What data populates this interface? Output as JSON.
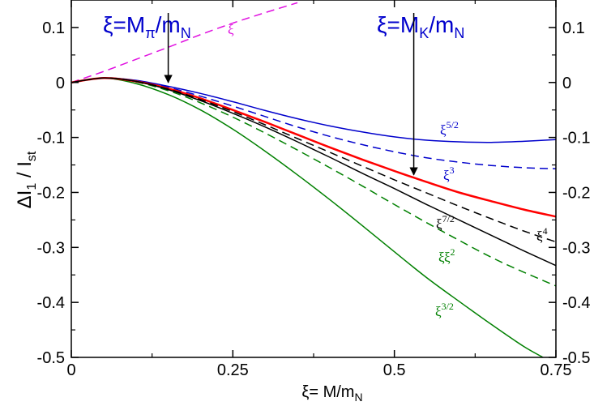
{
  "chart_data": {
    "type": "line",
    "title": "",
    "xlabel": "ξ= M/m_N",
    "ylabel": "ΔI_1 / I_st",
    "xlim": [
      0,
      0.75
    ],
    "ylim": [
      -0.5,
      0.15
    ],
    "x_ticks": [
      0,
      0.25,
      0.5,
      0.75
    ],
    "x_tick_labels": [
      "0",
      "0.25",
      "0.5",
      "0.75"
    ],
    "y_ticks": [
      0.1,
      0,
      -0.1,
      -0.2,
      -0.3,
      -0.4,
      -0.5
    ],
    "y_tick_labels": [
      "0.1",
      "0",
      "-0.1",
      "-0.2",
      "-0.3",
      "-0.4",
      "-0.5"
    ],
    "grid": false,
    "colors": {
      "blue": "#0000cc",
      "green": "#008000",
      "red": "#ff0000",
      "black": "#000000",
      "magenta": "#e010e0"
    },
    "series": [
      {
        "name": "xi",
        "label_base": "ξ",
        "label_sup": "",
        "label_prefix": "",
        "color": "#e010e0",
        "dash": "dashed",
        "width": 1.5,
        "x": [
          0,
          0.05,
          0.1,
          0.15,
          0.2,
          0.25,
          0.3,
          0.35
        ],
        "y": [
          0,
          0.02,
          0.042,
          0.064,
          0.087,
          0.108,
          0.127,
          0.145
        ]
      },
      {
        "name": "xi^3/2",
        "label_base": "ξ",
        "label_sup": "3/2",
        "label_prefix": "",
        "color": "#008000",
        "dash": "solid",
        "width": 1.5,
        "x": [
          0,
          0.05,
          0.1,
          0.15,
          0.2,
          0.25,
          0.3,
          0.35,
          0.4,
          0.45,
          0.5,
          0.55,
          0.6,
          0.65,
          0.7,
          0.73
        ],
        "y": [
          0,
          0.008,
          -0.002,
          -0.022,
          -0.05,
          -0.085,
          -0.125,
          -0.168,
          -0.213,
          -0.26,
          -0.308,
          -0.355,
          -0.398,
          -0.44,
          -0.48,
          -0.5
        ]
      },
      {
        "name": "xi^2",
        "label_base": "ξ",
        "label_sup": "2",
        "label_prefix": "ξ",
        "color": "#008000",
        "dash": "dashed",
        "width": 1.5,
        "x": [
          0,
          0.05,
          0.1,
          0.15,
          0.2,
          0.25,
          0.3,
          0.35,
          0.4,
          0.45,
          0.5,
          0.55,
          0.6,
          0.65,
          0.7,
          0.75
        ],
        "y": [
          0,
          0.008,
          0.001,
          -0.015,
          -0.037,
          -0.063,
          -0.092,
          -0.123,
          -0.155,
          -0.188,
          -0.222,
          -0.255,
          -0.287,
          -0.318,
          -0.345,
          -0.37
        ]
      },
      {
        "name": "xi^5/2",
        "label_base": "ξ",
        "label_sup": "5/2",
        "label_prefix": "",
        "color": "#0000cc",
        "dash": "solid",
        "width": 1.5,
        "x": [
          0,
          0.05,
          0.1,
          0.15,
          0.2,
          0.25,
          0.3,
          0.35,
          0.4,
          0.45,
          0.5,
          0.55,
          0.6,
          0.65,
          0.7,
          0.75
        ],
        "y": [
          0,
          0.008,
          0.004,
          -0.007,
          -0.02,
          -0.035,
          -0.051,
          -0.066,
          -0.079,
          -0.09,
          -0.099,
          -0.105,
          -0.108,
          -0.109,
          -0.107,
          -0.104
        ]
      },
      {
        "name": "xi^3",
        "label_base": "ξ",
        "label_sup": "3",
        "label_prefix": "",
        "color": "#0000cc",
        "dash": "dashed",
        "width": 1.5,
        "x": [
          0,
          0.05,
          0.1,
          0.15,
          0.2,
          0.25,
          0.3,
          0.35,
          0.4,
          0.45,
          0.5,
          0.55,
          0.6,
          0.65,
          0.7,
          0.75
        ],
        "y": [
          0,
          0.008,
          0.003,
          -0.009,
          -0.025,
          -0.043,
          -0.062,
          -0.081,
          -0.098,
          -0.113,
          -0.126,
          -0.137,
          -0.145,
          -0.151,
          -0.155,
          -0.157
        ]
      },
      {
        "name": "red",
        "label_base": "",
        "label_sup": "",
        "label_prefix": "",
        "color": "#ff0000",
        "dash": "solid",
        "width": 2.5,
        "x": [
          0,
          0.05,
          0.1,
          0.15,
          0.2,
          0.25,
          0.3,
          0.35,
          0.4,
          0.45,
          0.5,
          0.55,
          0.6,
          0.65,
          0.7,
          0.75
        ],
        "y": [
          0,
          0.008,
          0.002,
          -0.011,
          -0.029,
          -0.05,
          -0.072,
          -0.095,
          -0.118,
          -0.14,
          -0.161,
          -0.181,
          -0.2,
          -0.216,
          -0.231,
          -0.244
        ]
      },
      {
        "name": "xi^4",
        "label_base": "ξ",
        "label_sup": "4",
        "label_prefix": "",
        "color": "#000000",
        "dash": "dashed",
        "width": 1.5,
        "x": [
          0,
          0.05,
          0.1,
          0.15,
          0.2,
          0.25,
          0.3,
          0.35,
          0.4,
          0.45,
          0.5,
          0.55,
          0.6,
          0.65,
          0.7,
          0.75
        ],
        "y": [
          0,
          0.008,
          0.002,
          -0.012,
          -0.031,
          -0.053,
          -0.077,
          -0.102,
          -0.127,
          -0.152,
          -0.177,
          -0.201,
          -0.225,
          -0.248,
          -0.27,
          -0.29
        ]
      },
      {
        "name": "xi^7/2",
        "label_base": "ξ",
        "label_sup": "7/2",
        "label_prefix": "",
        "color": "#000000",
        "dash": "solid",
        "width": 1.5,
        "x": [
          0,
          0.05,
          0.1,
          0.15,
          0.2,
          0.25,
          0.3,
          0.35,
          0.4,
          0.45,
          0.5,
          0.55,
          0.6,
          0.65,
          0.7,
          0.75
        ],
        "y": [
          0,
          0.008,
          0.002,
          -0.013,
          -0.033,
          -0.056,
          -0.081,
          -0.108,
          -0.136,
          -0.165,
          -0.193,
          -0.222,
          -0.25,
          -0.278,
          -0.306,
          -0.333
        ]
      }
    ],
    "annotations": [
      {
        "name": "m-pi-marker",
        "base": "ξ=M",
        "sub1": "π",
        "mid": "/m",
        "sub2": "N",
        "color": "#0000cc",
        "arrow_x": 0.15,
        "arrow_y_from": 0.15,
        "arrow_y_to": 0.0
      },
      {
        "name": "m-k-marker",
        "base": "ξ=M",
        "sub1": "K",
        "mid": "/m",
        "sub2": "N",
        "color": "#0000cc",
        "arrow_x": 0.53,
        "arrow_y_from": 0.15,
        "arrow_y_to": -0.168
      }
    ]
  }
}
